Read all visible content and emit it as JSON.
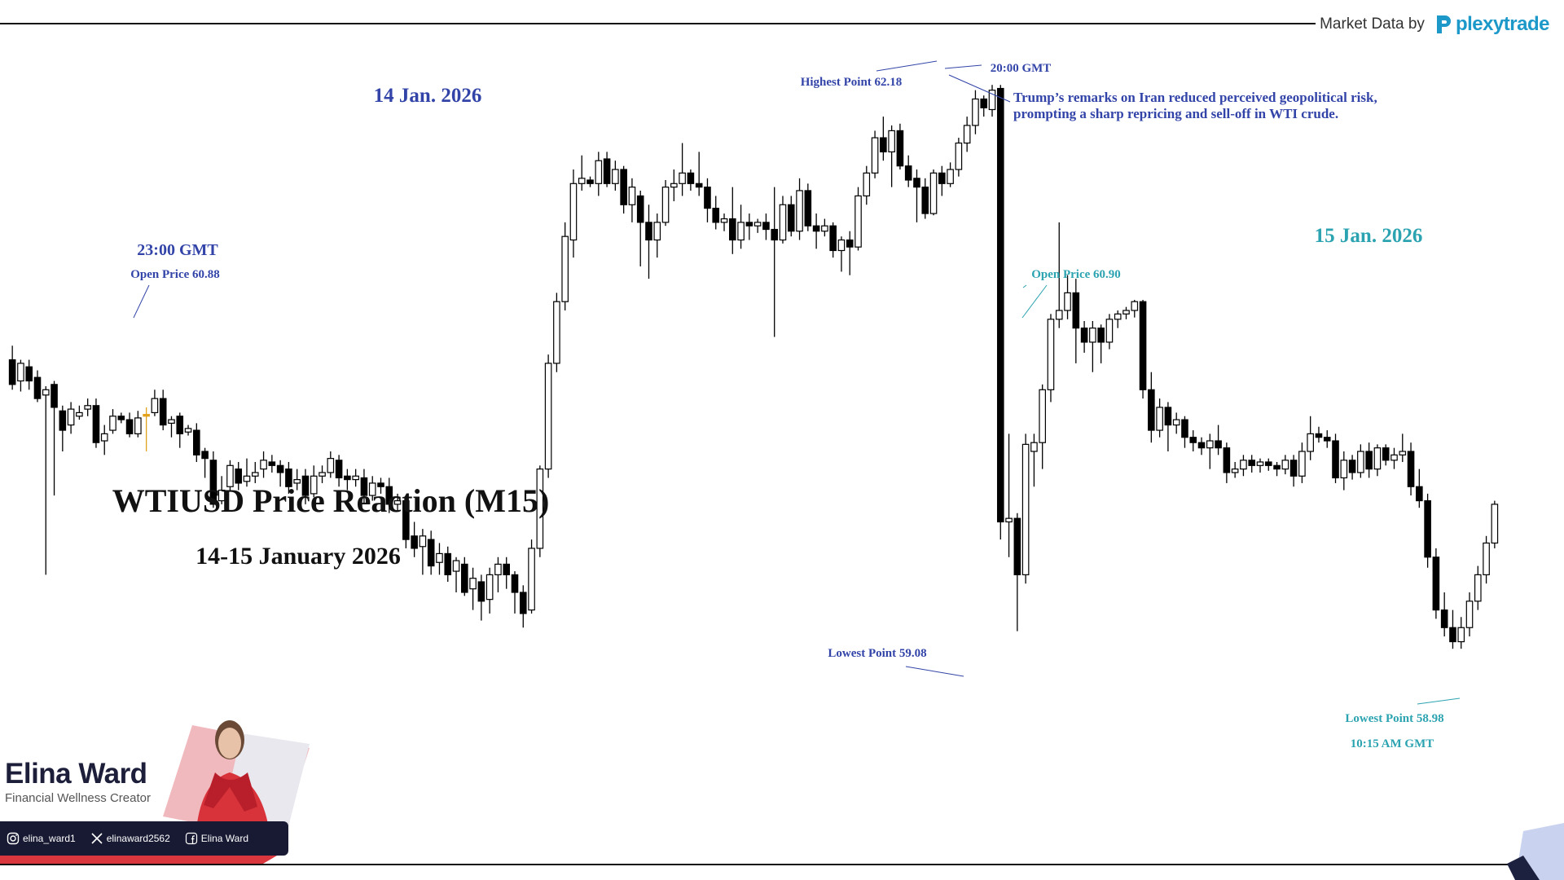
{
  "header": {
    "market_data_label": "Market Data by",
    "brand_name": "plexytrade",
    "brand_color": "#1c98c9"
  },
  "profile": {
    "name": "Elina Ward",
    "role": "Financial Wellness Creator",
    "socials": [
      {
        "icon": "instagram-icon",
        "handle": "elina_ward1"
      },
      {
        "icon": "x-icon",
        "handle": "elinaward2562"
      },
      {
        "icon": "facebook-icon",
        "handle": "Elina Ward"
      }
    ]
  },
  "colors": {
    "bull": "#ffffff",
    "bear": "#000000",
    "doji": "#e2a21c",
    "annotation_blue": "#3344a8",
    "annotation_teal": "#2ba3b0"
  },
  "chart_data": {
    "type": "candlestick",
    "title": "WTIUSD Price Reaction (M15)",
    "subtitle": "14-15 January 2026",
    "annotations": [
      {
        "text": "14 Jan. 2026",
        "color": "annotation_blue"
      },
      {
        "text": "23:00 GMT",
        "color": "annotation_blue"
      },
      {
        "text": "Open Price 60.88",
        "color": "annotation_blue"
      },
      {
        "text": "Highest Point 62.18",
        "color": "annotation_blue"
      },
      {
        "text": "20:00 GMT",
        "color": "annotation_blue"
      },
      {
        "text": "Trump’s remarks on Iran reduced perceived geopolitical risk,",
        "color": "annotation_blue"
      },
      {
        "text": "prompting a sharp repricing and sell-off in WTI crude.",
        "color": "annotation_blue"
      },
      {
        "text": "Lowest Point 59.08",
        "color": "annotation_blue"
      },
      {
        "text": "15 Jan. 2026",
        "color": "annotation_teal"
      },
      {
        "text": "Open Price 60.90",
        "color": "annotation_teal"
      },
      {
        "text": "Lowest Point 58.98",
        "color": "annotation_teal"
      },
      {
        "text": "10:15 AM GMT",
        "color": "annotation_teal"
      }
    ],
    "key_points": {
      "open_14": 60.88,
      "high_14": 62.18,
      "low_14": 59.08,
      "open_15": 60.9,
      "low_15": 58.98
    },
    "ylim": [
      58.5,
      62.5
    ],
    "grid": false,
    "candles": [
      [
        60.62,
        60.48,
        60.7,
        60.45
      ],
      [
        60.5,
        60.6,
        60.62,
        60.44
      ],
      [
        60.58,
        60.5,
        60.62,
        60.45
      ],
      [
        60.52,
        60.4,
        60.56,
        60.38
      ],
      [
        60.42,
        60.45,
        60.47,
        59.4
      ],
      [
        60.48,
        60.35,
        60.5,
        59.85
      ],
      [
        60.33,
        60.22,
        60.36,
        60.1
      ],
      [
        60.25,
        60.34,
        60.38,
        60.2
      ],
      [
        60.3,
        60.32,
        60.36,
        60.28
      ],
      [
        60.34,
        60.36,
        60.4,
        60.3
      ],
      [
        60.36,
        60.15,
        60.4,
        60.12
      ],
      [
        60.16,
        60.2,
        60.25,
        60.08
      ],
      [
        60.22,
        60.3,
        60.34,
        60.2
      ],
      [
        60.3,
        60.28,
        60.32,
        60.26
      ],
      [
        60.28,
        60.2,
        60.32,
        60.18
      ],
      [
        60.2,
        60.29,
        60.33,
        60.18
      ],
      [
        60.3,
        60.31,
        60.35,
        60.1
      ],
      [
        60.32,
        60.4,
        60.45,
        60.3
      ],
      [
        60.4,
        60.25,
        60.45,
        60.22
      ],
      [
        60.26,
        60.28,
        60.3,
        60.18
      ],
      [
        60.3,
        60.2,
        60.32,
        60.12
      ],
      [
        60.21,
        60.23,
        60.25,
        60.19
      ],
      [
        60.22,
        60.08,
        60.26,
        60.04
      ],
      [
        60.1,
        60.06,
        60.12,
        59.95
      ],
      [
        60.05,
        59.8,
        60.1,
        59.78
      ],
      [
        59.82,
        59.88,
        59.96,
        59.8
      ],
      [
        59.9,
        60.02,
        60.05,
        59.88
      ],
      [
        60.0,
        59.92,
        60.04,
        59.88
      ],
      [
        59.93,
        59.96,
        60.06,
        59.9
      ],
      [
        59.96,
        59.98,
        60.04,
        59.92
      ],
      [
        60.0,
        60.05,
        60.1,
        59.95
      ],
      [
        60.04,
        60.02,
        60.08,
        59.98
      ],
      [
        60.02,
        59.98,
        60.05,
        59.9
      ],
      [
        60.0,
        59.9,
        60.04,
        59.86
      ],
      [
        59.92,
        59.94,
        60.0,
        59.88
      ],
      [
        59.96,
        59.85,
        60.0,
        59.8
      ],
      [
        59.86,
        59.96,
        60.02,
        59.84
      ],
      [
        59.96,
        59.98,
        60.02,
        59.92
      ],
      [
        59.98,
        60.06,
        60.1,
        59.95
      ],
      [
        60.05,
        59.95,
        60.08,
        59.9
      ],
      [
        59.96,
        59.94,
        60.0,
        59.88
      ],
      [
        59.94,
        59.96,
        60.0,
        59.9
      ],
      [
        59.95,
        59.85,
        60.0,
        59.8
      ],
      [
        59.85,
        59.92,
        59.96,
        59.82
      ],
      [
        59.92,
        59.9,
        59.95,
        59.86
      ],
      [
        59.9,
        59.8,
        59.95,
        59.75
      ],
      [
        59.8,
        59.82,
        59.86,
        59.76
      ],
      [
        59.82,
        59.6,
        59.85,
        59.55
      ],
      [
        59.62,
        59.55,
        59.7,
        59.5
      ],
      [
        59.56,
        59.62,
        59.66,
        59.4
      ],
      [
        59.6,
        59.45,
        59.65,
        59.4
      ],
      [
        59.47,
        59.52,
        59.58,
        59.4
      ],
      [
        59.52,
        59.4,
        59.56,
        59.36
      ],
      [
        59.42,
        59.48,
        59.5,
        59.3
      ],
      [
        59.46,
        59.3,
        59.5,
        59.28
      ],
      [
        59.32,
        59.38,
        59.44,
        59.2
      ],
      [
        59.36,
        59.25,
        59.4,
        59.14
      ],
      [
        59.26,
        59.4,
        59.44,
        59.18
      ],
      [
        59.4,
        59.46,
        59.5,
        59.3
      ],
      [
        59.46,
        59.4,
        59.5,
        59.32
      ],
      [
        59.4,
        59.3,
        59.42,
        59.18
      ],
      [
        59.3,
        59.18,
        59.34,
        59.1
      ],
      [
        59.2,
        59.55,
        59.6,
        59.18
      ],
      [
        59.55,
        60.0,
        60.02,
        59.5
      ],
      [
        60.0,
        60.6,
        60.65,
        59.95
      ],
      [
        60.6,
        60.95,
        61.0,
        60.55
      ],
      [
        60.95,
        61.32,
        61.4,
        60.9
      ],
      [
        61.3,
        61.62,
        61.7,
        61.2
      ],
      [
        61.62,
        61.65,
        61.78,
        61.58
      ],
      [
        61.64,
        61.62,
        61.66,
        61.6
      ],
      [
        61.62,
        61.75,
        61.8,
        61.55
      ],
      [
        61.76,
        61.62,
        61.8,
        61.6
      ],
      [
        61.62,
        61.7,
        61.75,
        61.58
      ],
      [
        61.7,
        61.5,
        61.72,
        61.45
      ],
      [
        61.5,
        61.6,
        61.65,
        61.4
      ],
      [
        61.55,
        61.4,
        61.58,
        61.15
      ],
      [
        61.4,
        61.3,
        61.5,
        61.08
      ],
      [
        61.3,
        61.4,
        61.45,
        61.2
      ],
      [
        61.4,
        61.6,
        61.64,
        61.38
      ],
      [
        61.6,
        61.62,
        61.7,
        61.52
      ],
      [
        61.62,
        61.68,
        61.85,
        61.55
      ],
      [
        61.68,
        61.62,
        61.7,
        61.58
      ],
      [
        61.62,
        61.6,
        61.8,
        61.55
      ],
      [
        61.6,
        61.48,
        61.65,
        61.4
      ],
      [
        61.48,
        61.4,
        61.55,
        61.36
      ],
      [
        61.4,
        61.42,
        61.45,
        61.35
      ],
      [
        61.42,
        61.3,
        61.6,
        61.22
      ],
      [
        61.3,
        61.4,
        61.5,
        61.25
      ],
      [
        61.4,
        61.38,
        61.45,
        61.3
      ],
      [
        61.38,
        61.4,
        61.42,
        61.34
      ],
      [
        61.4,
        61.36,
        61.45,
        61.3
      ],
      [
        61.36,
        61.3,
        61.6,
        60.75
      ],
      [
        61.3,
        61.5,
        61.55,
        61.28
      ],
      [
        61.5,
        61.35,
        61.55,
        61.32
      ],
      [
        61.35,
        61.58,
        61.65,
        61.3
      ],
      [
        61.58,
        61.38,
        61.62,
        61.35
      ],
      [
        61.38,
        61.35,
        61.45,
        61.25
      ],
      [
        61.35,
        61.38,
        61.42,
        61.32
      ],
      [
        61.38,
        61.24,
        61.4,
        61.2
      ],
      [
        61.24,
        61.3,
        61.32,
        61.12
      ],
      [
        61.3,
        61.26,
        61.35,
        61.1
      ],
      [
        61.26,
        61.55,
        61.6,
        61.24
      ],
      [
        61.55,
        61.68,
        61.72,
        61.5
      ],
      [
        61.68,
        61.88,
        61.92,
        61.65
      ],
      [
        61.88,
        61.8,
        62.0,
        61.75
      ],
      [
        61.8,
        61.92,
        61.95,
        61.6
      ],
      [
        61.92,
        61.72,
        61.96,
        61.7
      ],
      [
        61.72,
        61.64,
        61.78,
        61.6
      ],
      [
        61.65,
        61.6,
        61.7,
        61.4
      ],
      [
        61.6,
        61.45,
        61.65,
        61.42
      ],
      [
        61.45,
        61.68,
        61.7,
        61.44
      ],
      [
        61.68,
        61.62,
        61.72,
        61.55
      ],
      [
        61.62,
        61.7,
        61.74,
        61.6
      ],
      [
        61.7,
        61.85,
        61.88,
        61.66
      ],
      [
        61.85,
        61.95,
        62.0,
        61.8
      ],
      [
        61.95,
        62.1,
        62.15,
        61.9
      ],
      [
        62.1,
        62.05,
        62.12,
        62.0
      ],
      [
        62.04,
        62.15,
        62.18,
        62.0
      ],
      [
        62.16,
        59.7,
        62.18,
        59.6
      ],
      [
        59.7,
        59.72,
        60.2,
        59.5
      ],
      [
        59.72,
        59.4,
        59.75,
        59.08
      ],
      [
        59.4,
        60.14,
        60.2,
        59.35
      ],
      [
        60.1,
        60.15,
        60.2,
        59.9
      ],
      [
        60.15,
        60.45,
        60.48,
        60.0
      ],
      [
        60.45,
        60.85,
        60.88,
        60.38
      ],
      [
        60.85,
        60.9,
        61.4,
        60.8
      ],
      [
        60.9,
        61.0,
        61.1,
        60.85
      ],
      [
        61.0,
        60.8,
        61.08,
        60.6
      ],
      [
        60.8,
        60.72,
        60.84,
        60.66
      ],
      [
        60.72,
        60.8,
        60.84,
        60.55
      ],
      [
        60.8,
        60.72,
        60.82,
        60.6
      ],
      [
        60.72,
        60.85,
        60.88,
        60.68
      ],
      [
        60.85,
        60.88,
        60.9,
        60.8
      ],
      [
        60.88,
        60.9,
        60.92,
        60.85
      ],
      [
        60.9,
        60.95,
        60.96,
        60.86
      ],
      [
        60.95,
        60.45,
        60.96,
        60.4
      ],
      [
        60.45,
        60.22,
        60.55,
        60.15
      ],
      [
        60.22,
        60.35,
        60.4,
        60.18
      ],
      [
        60.35,
        60.25,
        60.38,
        60.1
      ],
      [
        60.25,
        60.28,
        60.32,
        60.2
      ],
      [
        60.28,
        60.18,
        60.3,
        60.12
      ],
      [
        60.18,
        60.15,
        60.22,
        60.1
      ],
      [
        60.15,
        60.12,
        60.18,
        60.08
      ],
      [
        60.12,
        60.16,
        60.2,
        60.0
      ],
      [
        60.16,
        60.12,
        60.25,
        60.08
      ],
      [
        60.12,
        59.98,
        60.15,
        59.92
      ],
      [
        59.98,
        60.0,
        60.04,
        59.95
      ],
      [
        60.0,
        60.05,
        60.08,
        59.96
      ],
      [
        60.05,
        60.02,
        60.08,
        59.98
      ],
      [
        60.02,
        60.04,
        60.06,
        59.98
      ],
      [
        60.04,
        60.02,
        60.06,
        59.99
      ],
      [
        60.02,
        60.0,
        60.04,
        59.96
      ],
      [
        60.0,
        60.05,
        60.08,
        59.97
      ],
      [
        60.05,
        59.96,
        60.08,
        59.9
      ],
      [
        59.96,
        60.1,
        60.15,
        59.92
      ],
      [
        60.1,
        60.2,
        60.3,
        60.05
      ],
      [
        60.2,
        60.18,
        60.24,
        60.15
      ],
      [
        60.18,
        60.16,
        60.22,
        60.12
      ],
      [
        60.16,
        59.95,
        60.2,
        59.92
      ],
      [
        59.95,
        60.05,
        60.1,
        59.88
      ],
      [
        60.05,
        59.98,
        60.08,
        59.94
      ],
      [
        59.98,
        60.1,
        60.14,
        59.95
      ],
      [
        60.1,
        60.0,
        60.15,
        59.95
      ],
      [
        60.0,
        60.12,
        60.14,
        59.96
      ],
      [
        60.12,
        60.05,
        60.14,
        60.02
      ],
      [
        60.05,
        60.08,
        60.12,
        60.0
      ],
      [
        60.08,
        60.1,
        60.2,
        60.04
      ],
      [
        60.1,
        59.9,
        60.15,
        59.85
      ],
      [
        59.9,
        59.82,
        60.0,
        59.78
      ],
      [
        59.82,
        59.5,
        59.86,
        59.44
      ],
      [
        59.5,
        59.2,
        59.55,
        59.15
      ],
      [
        59.2,
        59.1,
        59.3,
        59.05
      ],
      [
        59.1,
        59.02,
        59.2,
        58.98
      ],
      [
        59.02,
        59.1,
        59.16,
        58.98
      ],
      [
        59.1,
        59.25,
        59.3,
        59.05
      ],
      [
        59.25,
        59.4,
        59.45,
        59.2
      ],
      [
        59.4,
        59.58,
        59.62,
        59.35
      ],
      [
        59.58,
        59.8,
        59.82,
        59.55
      ]
    ]
  }
}
